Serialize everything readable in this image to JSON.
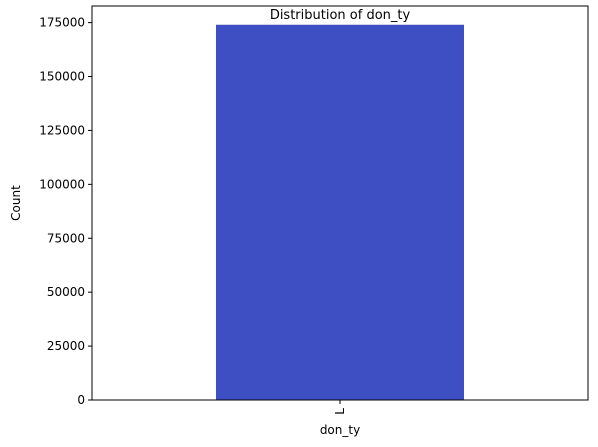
{
  "chart_data": {
    "type": "bar",
    "title": "Distribution of don_ty",
    "xlabel": "don_ty",
    "ylabel": "Count",
    "categories": [
      "L"
    ],
    "values": [
      174000
    ],
    "ylim": [
      0,
      182700
    ],
    "yticks": [
      0,
      25000,
      50000,
      75000,
      100000,
      125000,
      150000,
      175000
    ],
    "bar_color": "#3d4fc2",
    "grid": false,
    "legend": "none"
  }
}
